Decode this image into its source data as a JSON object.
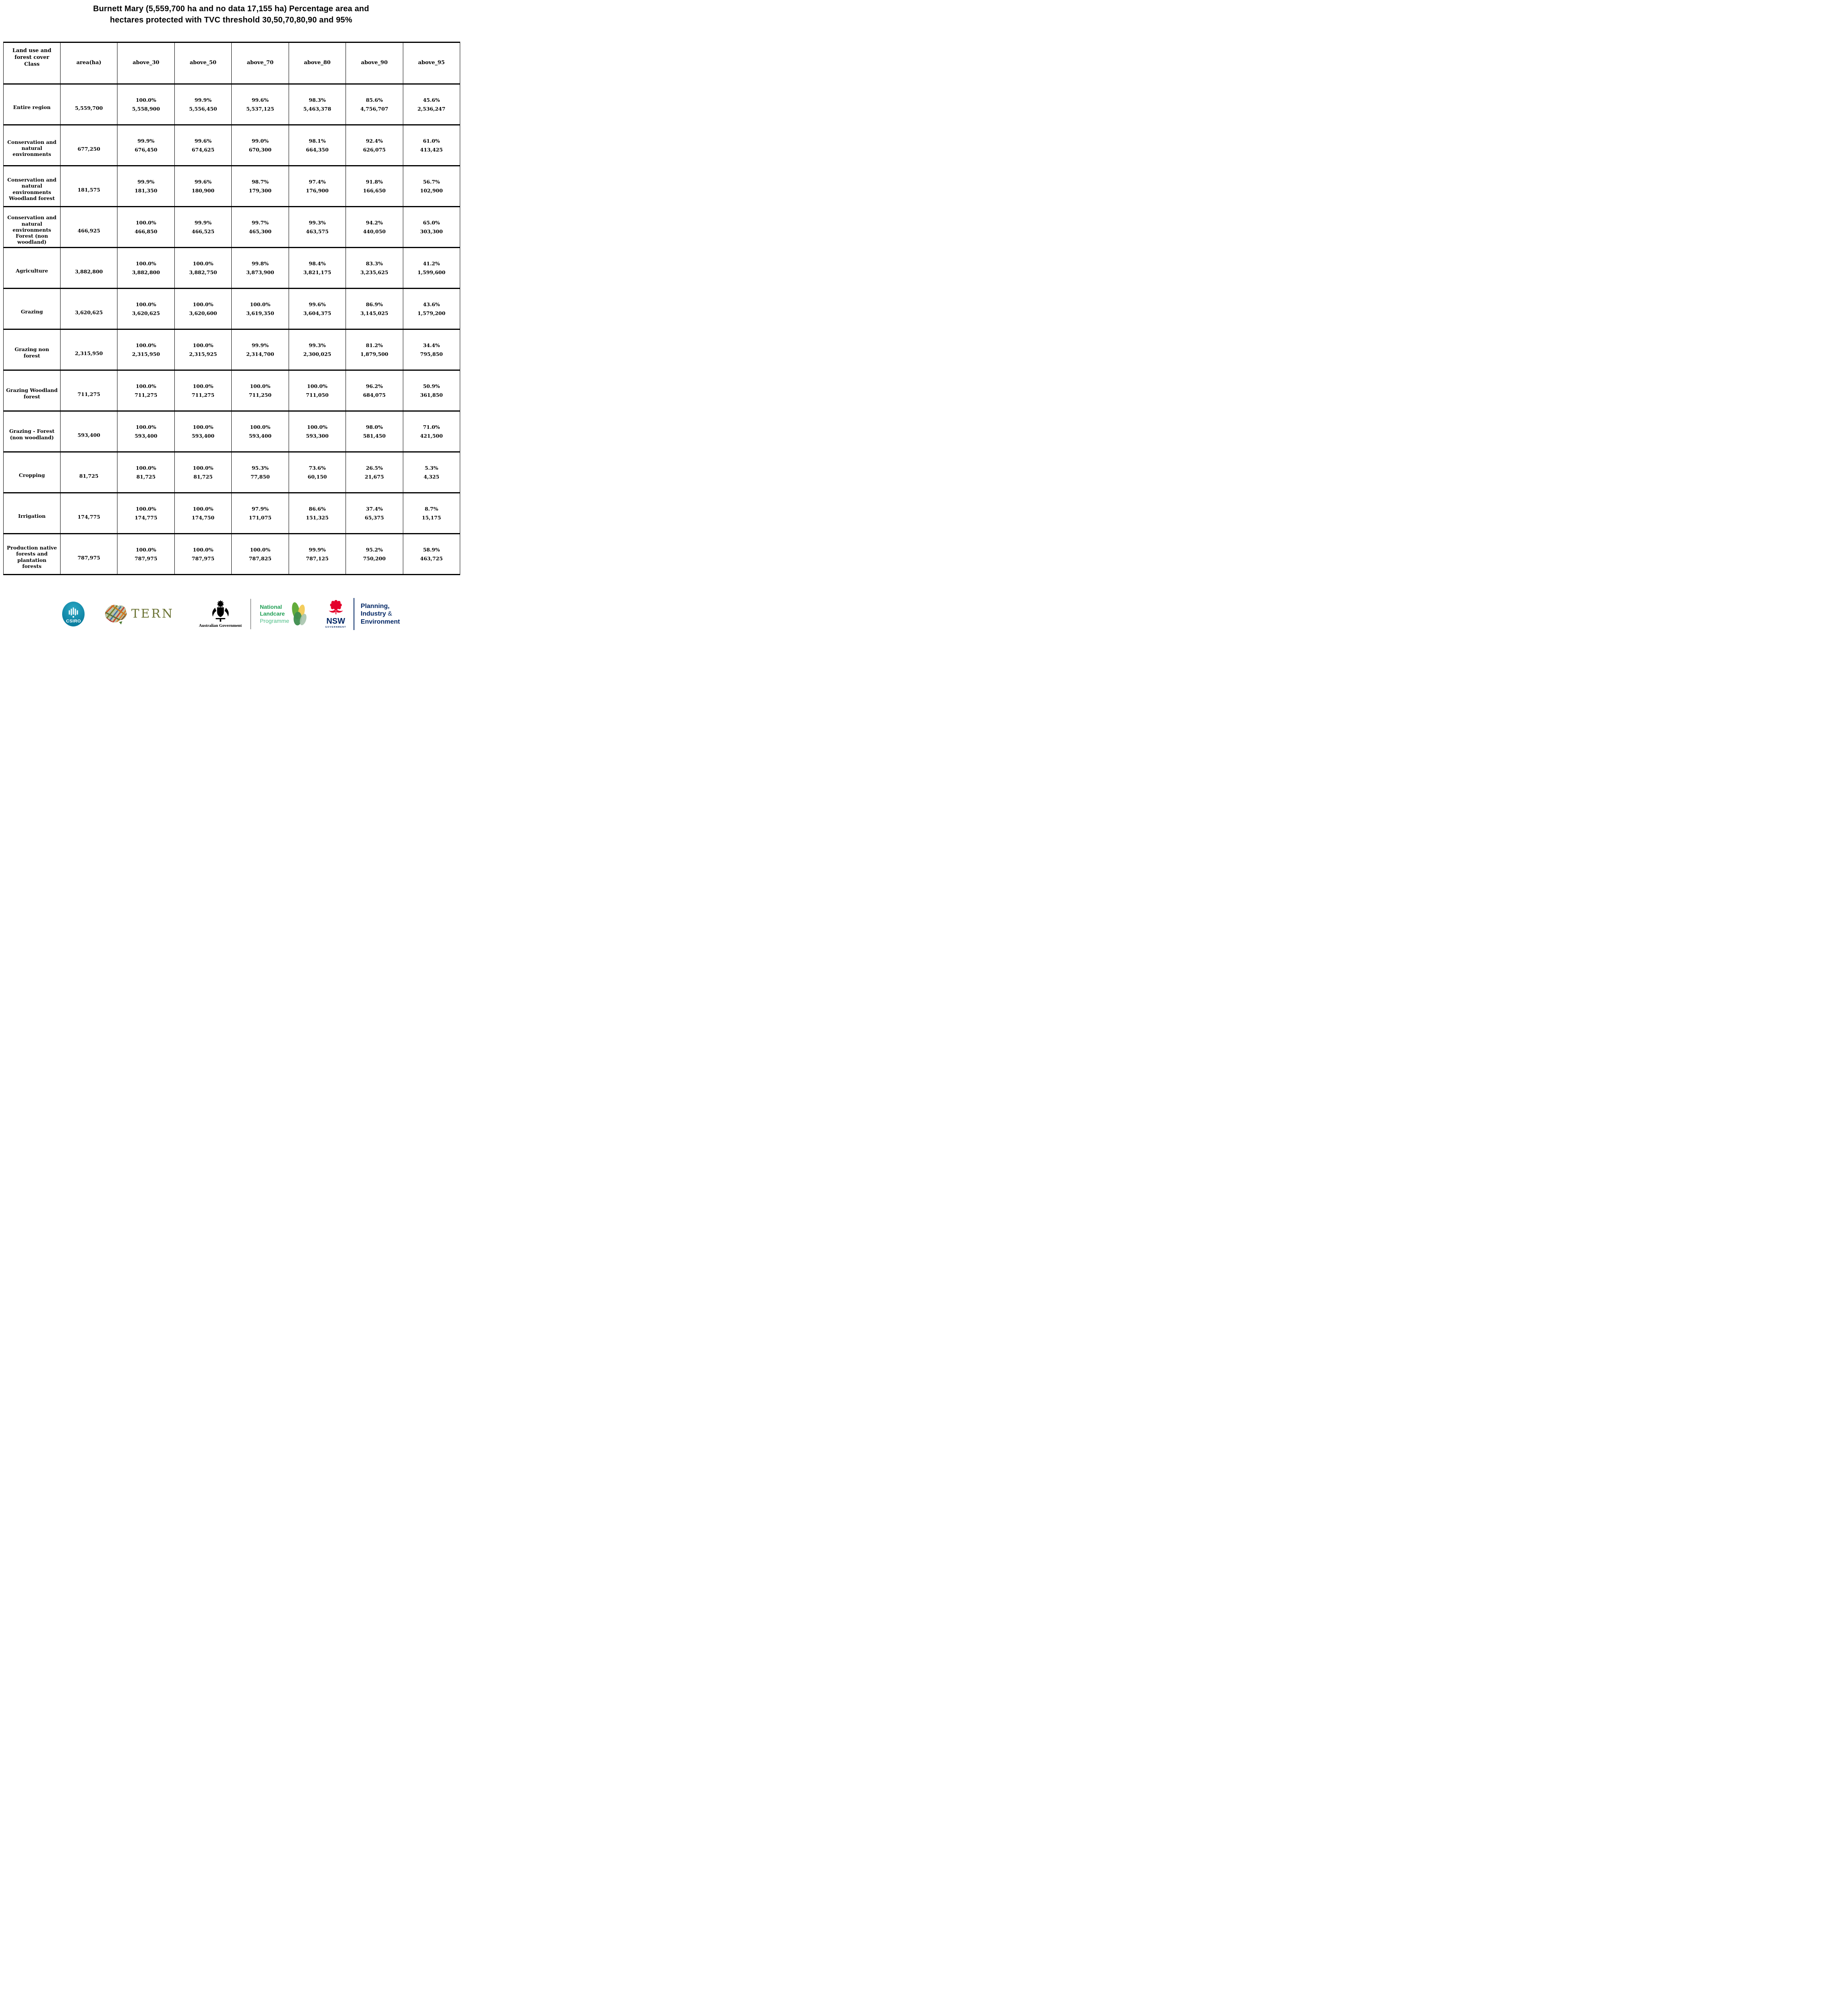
{
  "title": "Burnett Mary (5,559,700 ha and no data 17,155 ha) Percentage area and\nhectares protected with TVC threshold 30,50,70,80,90 and 95%",
  "table": {
    "columns": [
      "Land use and\nforest cover\nClass",
      "area(ha)",
      "above_30",
      "above_50",
      "above_70",
      "above_80",
      "above_90",
      "above_95"
    ],
    "rows": [
      {
        "label": "Entire region",
        "area": "5,559,700",
        "cells": [
          [
            "100.0%",
            "5,558,900"
          ],
          [
            "99.9%",
            "5,556,450"
          ],
          [
            "99.6%",
            "5,537,125"
          ],
          [
            "98.3%",
            "5,463,378"
          ],
          [
            "85.6%",
            "4,756,707"
          ],
          [
            "45.6%",
            "2,536,247"
          ]
        ]
      },
      {
        "label": "Conservation and\nnatural\nenvironments",
        "area": "677,250",
        "cells": [
          [
            "99.9%",
            "676,450"
          ],
          [
            "99.6%",
            "674,625"
          ],
          [
            "99.0%",
            "670,300"
          ],
          [
            "98.1%",
            "664,350"
          ],
          [
            "92.4%",
            "626,075"
          ],
          [
            "61.0%",
            "413,425"
          ]
        ]
      },
      {
        "label": "Conservation and\nnatural\nenvironments\nWoodland forest",
        "area": "181,575",
        "cells": [
          [
            "99.9%",
            "181,350"
          ],
          [
            "99.6%",
            "180,900"
          ],
          [
            "98.7%",
            "179,300"
          ],
          [
            "97.4%",
            "176,900"
          ],
          [
            "91.8%",
            "166,650"
          ],
          [
            "56.7%",
            "102,900"
          ]
        ]
      },
      {
        "label": "Conservation and\nnatural\nenvironments\nForest (non\nwoodland)",
        "area": "466,925",
        "cells": [
          [
            "100.0%",
            "466,850"
          ],
          [
            "99.9%",
            "466,525"
          ],
          [
            "99.7%",
            "465,300"
          ],
          [
            "99.3%",
            "463,575"
          ],
          [
            "94.2%",
            "440,050"
          ],
          [
            "65.0%",
            "303,300"
          ]
        ]
      },
      {
        "label": "Agriculture",
        "area": "3,882,800",
        "cells": [
          [
            "100.0%",
            "3,882,800"
          ],
          [
            "100.0%",
            "3,882,750"
          ],
          [
            "99.8%",
            "3,873,900"
          ],
          [
            "98.4%",
            "3,821,175"
          ],
          [
            "83.3%",
            "3,235,625"
          ],
          [
            "41.2%",
            "1,599,600"
          ]
        ]
      },
      {
        "label": "Grazing",
        "area": "3,620,625",
        "cells": [
          [
            "100.0%",
            "3,620,625"
          ],
          [
            "100.0%",
            "3,620,600"
          ],
          [
            "100.0%",
            "3,619,350"
          ],
          [
            "99.6%",
            "3,604,375"
          ],
          [
            "86.9%",
            "3,145,025"
          ],
          [
            "43.6%",
            "1,579,200"
          ]
        ]
      },
      {
        "label": "Grazing non\nforest",
        "area": "2,315,950",
        "cells": [
          [
            "100.0%",
            "2,315,950"
          ],
          [
            "100.0%",
            "2,315,925"
          ],
          [
            "99.9%",
            "2,314,700"
          ],
          [
            "99.3%",
            "2,300,025"
          ],
          [
            "81.2%",
            "1,879,500"
          ],
          [
            "34.4%",
            "795,850"
          ]
        ]
      },
      {
        "label": "Grazing Woodland\nforest",
        "area": "711,275",
        "cells": [
          [
            "100.0%",
            "711,275"
          ],
          [
            "100.0%",
            "711,275"
          ],
          [
            "100.0%",
            "711,250"
          ],
          [
            "100.0%",
            "711,050"
          ],
          [
            "96.2%",
            "684,075"
          ],
          [
            "50.9%",
            "361,850"
          ]
        ]
      },
      {
        "label": "Grazing - Forest\n(non woodland)",
        "area": "593,400",
        "cells": [
          [
            "100.0%",
            "593,400"
          ],
          [
            "100.0%",
            "593,400"
          ],
          [
            "100.0%",
            "593,400"
          ],
          [
            "100.0%",
            "593,300"
          ],
          [
            "98.0%",
            "581,450"
          ],
          [
            "71.0%",
            "421,500"
          ]
        ]
      },
      {
        "label": "Cropping",
        "area": "81,725",
        "cells": [
          [
            "100.0%",
            "81,725"
          ],
          [
            "100.0%",
            "81,725"
          ],
          [
            "95.3%",
            "77,850"
          ],
          [
            "73.6%",
            "60,150"
          ],
          [
            "26.5%",
            "21,675"
          ],
          [
            "5.3%",
            "4,325"
          ]
        ]
      },
      {
        "label": "Irrigation",
        "area": "174,775",
        "cells": [
          [
            "100.0%",
            "174,775"
          ],
          [
            "100.0%",
            "174,750"
          ],
          [
            "97.9%",
            "171,075"
          ],
          [
            "86.6%",
            "151,325"
          ],
          [
            "37.4%",
            "65,375"
          ],
          [
            "8.7%",
            "15,175"
          ]
        ]
      },
      {
        "label": "Production native\nforests and\nplantation\nforests",
        "area": "787,975",
        "cells": [
          [
            "100.0%",
            "787,975"
          ],
          [
            "100.0%",
            "787,975"
          ],
          [
            "100.0%",
            "787,825"
          ],
          [
            "99.9%",
            "787,125"
          ],
          [
            "95.2%",
            "750,200"
          ],
          [
            "58.9%",
            "463,725"
          ]
        ]
      }
    ]
  },
  "footer": {
    "csiro_label": "CSIRO",
    "tern_label": "TERN",
    "ausgov_label": "Australian Government",
    "landcare": {
      "line1": "National",
      "line2": "Landcare",
      "line3": "Programme"
    },
    "nsw": {
      "name": "NSW",
      "sub": "GOVERNMENT"
    },
    "agency": {
      "line1": "Planning,",
      "line2": "Industry",
      "amp": "&",
      "line3": "Environment"
    }
  },
  "colors": {
    "csiro_teal": "#0C7FA0",
    "tern_olive": "#6B7334",
    "landcare_green": "#1E9E53",
    "landcare_light": "#4FBE87",
    "nsw_red": "#E4002B",
    "nsw_navy": "#002664"
  }
}
